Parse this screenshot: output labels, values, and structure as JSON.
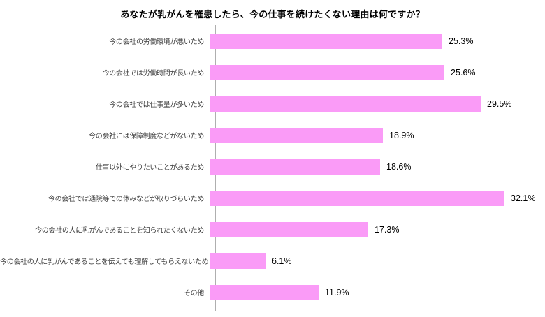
{
  "chart_data": {
    "type": "bar",
    "orientation": "horizontal",
    "title": "あなたが乳がんを罹患したら、今の仕事を続けたくない理由は何ですか？",
    "categories": [
      "今の会社の労働環境が悪いため",
      "今の会社では労働時間が長いため",
      "今の会社では仕事量が多いため",
      "今の会社には保障制度などがないため",
      "仕事以外にやりたいことがあるため",
      "今の会社では通院等での休みなどが取りづらいため",
      "今の会社の人に乳がんであることを知られたくないため",
      "今の会社の人に乳がんであることを伝えても理解してもらえないため",
      "その他"
    ],
    "values": [
      25.3,
      25.6,
      29.5,
      18.9,
      18.6,
      32.1,
      17.3,
      6.1,
      11.9
    ],
    "value_labels": [
      "25.3%",
      "25.6%",
      "29.5%",
      "18.9%",
      "18.6%",
      "32.1%",
      "17.3%",
      "6.1%",
      "11.9%"
    ],
    "xlabel": "",
    "ylabel": "",
    "xlim": [
      0,
      35
    ],
    "grid": false,
    "legend": "none",
    "bar_color": "#fa9bf7",
    "axis_line_color": "#afafaf"
  }
}
